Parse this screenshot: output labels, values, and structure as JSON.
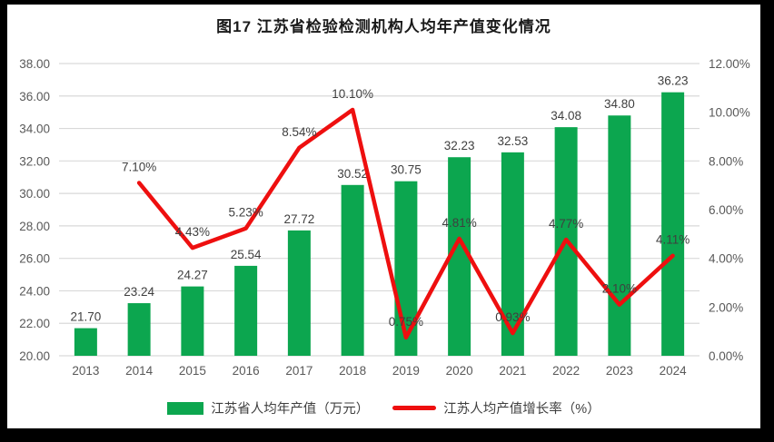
{
  "title": "图17  江苏省检验检测机构人均年产值变化情况",
  "colors": {
    "bar": "#0CA64F",
    "line": "#EE0F0F",
    "gridline": "#D9D9D9",
    "tick_text": "#595959",
    "data_label": "#3F3F3F",
    "frame": "#000000",
    "panel_bg": "#FFFFFF"
  },
  "chart_data": {
    "type": "bar",
    "subtype": "combo-bar-line",
    "title": "图17  江苏省检验检测机构人均年产值变化情况",
    "categories": [
      "2013",
      "2014",
      "2015",
      "2016",
      "2017",
      "2018",
      "2019",
      "2020",
      "2021",
      "2022",
      "2023",
      "2024"
    ],
    "series": [
      {
        "name": "江苏省人均年产值（万元）",
        "type": "bar",
        "axis": "left",
        "color": "#0CA64F",
        "values": [
          21.7,
          23.24,
          24.27,
          25.54,
          27.72,
          30.52,
          30.75,
          32.23,
          32.53,
          34.08,
          34.8,
          36.23
        ],
        "labels": [
          "21.70",
          "23.24",
          "24.27",
          "25.54",
          "27.72",
          "30.52",
          "30.75",
          "32.23",
          "32.53",
          "34.08",
          "34.80",
          "36.23"
        ]
      },
      {
        "name": "江苏人均产值增长率（%）",
        "type": "line",
        "axis": "right",
        "color": "#EE0F0F",
        "values": [
          null,
          7.1,
          4.43,
          5.23,
          8.54,
          10.1,
          0.75,
          4.81,
          0.93,
          4.77,
          2.1,
          4.11
        ],
        "labels": [
          null,
          "7.10%",
          "4.43%",
          "5.23%",
          "8.54%",
          "10.10%",
          "0.75%",
          "4.81%",
          "0.93%",
          "4.77%",
          "2.10%",
          "4.11%"
        ]
      }
    ],
    "left_axis": {
      "min": 20,
      "max": 38,
      "step": 2,
      "ticks": [
        "20.00",
        "22.00",
        "24.00",
        "26.00",
        "28.00",
        "30.00",
        "32.00",
        "34.00",
        "36.00",
        "38.00"
      ]
    },
    "right_axis": {
      "min": 0,
      "max": 12,
      "step": 2,
      "ticks": [
        "0.00%",
        "2.00%",
        "4.00%",
        "6.00%",
        "8.00%",
        "10.00%",
        "12.00%"
      ]
    },
    "grid": true,
    "legend_position": "bottom"
  }
}
